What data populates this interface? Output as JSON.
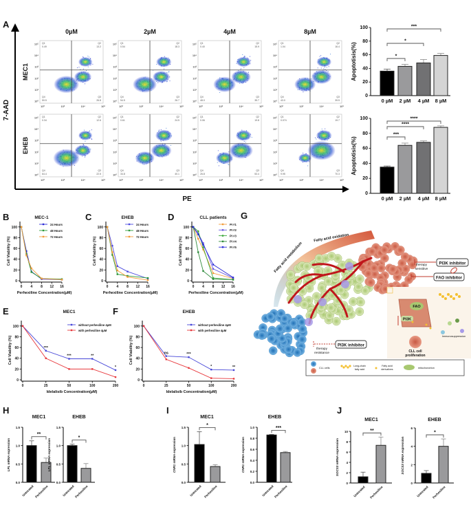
{
  "panel_letters": {
    "A": "A",
    "B": "B",
    "C": "C",
    "D": "D",
    "E": "E",
    "F": "F",
    "G": "G",
    "H": "H",
    "I": "I",
    "J": "J"
  },
  "flow": {
    "y_axis_label": "7-AAD",
    "x_axis_label": "PE",
    "columns": [
      "0µM",
      "2µM",
      "4µM",
      "8µM"
    ],
    "rows": [
      "MEC1",
      "EHEB"
    ],
    "x_ticks": [
      "10⁰",
      "10²",
      "10⁴",
      "10⁶"
    ],
    "y_ticks": [
      "10⁰",
      "10¹",
      "10²",
      "10³",
      "10⁴",
      "10⁵"
    ],
    "quadrant_names": [
      "Q1",
      "Q2",
      "Q3",
      "Q4"
    ],
    "quadrants": [
      [
        {
          "Q1": "0.49",
          "Q2": "13.2",
          "Q3": "26.8",
          "Q4": "59.5"
        },
        {
          "Q1": "0.54",
          "Q2": "18.3",
          "Q3": "26.7",
          "Q4": "54.5"
        },
        {
          "Q1": "0.40",
          "Q2": "15.9",
          "Q3": "35.7",
          "Q4": "48.0"
        },
        {
          "Q1": "1.04",
          "Q2": "16.4",
          "Q3": "39.5",
          "Q4": "43.0"
        }
      ],
      [
        {
          "Q1": "0.34",
          "Q2": "12.6",
          "Q3": "22.5",
          "Q4": "64.4"
        },
        {
          "Q1": "0.61",
          "Q2": "24.5",
          "Q3": "40.1",
          "Q4": "34.8"
        },
        {
          "Q1": "0.06",
          "Q2": "19.8",
          "Q3": "53.4",
          "Q4": "26.8"
        },
        {
          "Q1": "0.074",
          "Q2": "19.7",
          "Q3": "70.3",
          "Q4": "9.95"
        }
      ]
    ]
  },
  "chart_data": [
    {
      "id": "A-MEC1",
      "type": "bar",
      "ylabel": "Apoptotisis(%)",
      "categories": [
        "0 µM",
        "2 µM",
        "4 µM",
        "8 µM"
      ],
      "values": [
        36,
        43,
        48,
        59
      ],
      "errors": [
        3,
        3,
        5,
        3
      ],
      "ylim": [
        0,
        100
      ],
      "yticks": [
        "0",
        "20",
        "40",
        "60",
        "80",
        "100"
      ],
      "colors": [
        "#000000",
        "#9a9a9c",
        "#717173",
        "#d4d4d4"
      ],
      "comparisons": [
        {
          "from": 0,
          "to": 1,
          "label": "*"
        },
        {
          "from": 0,
          "to": 2,
          "label": "*"
        },
        {
          "from": 0,
          "to": 3,
          "label": "***"
        }
      ]
    },
    {
      "id": "A-EHEB",
      "type": "bar",
      "ylabel": "Apoptotisis(%)",
      "categories": [
        "0 µM",
        "2 µM",
        "4 µM",
        "8 µM"
      ],
      "values": [
        35,
        64,
        68,
        88
      ],
      "errors": [
        1.5,
        3,
        2,
        2
      ],
      "ylim": [
        0,
        100
      ],
      "yticks": [
        "0",
        "20",
        "40",
        "60",
        "80",
        "100"
      ],
      "colors": [
        "#000000",
        "#9a9a9c",
        "#717173",
        "#d4d4d4"
      ],
      "comparisons": [
        {
          "from": 0,
          "to": 1,
          "label": "***"
        },
        {
          "from": 0,
          "to": 2,
          "label": "****"
        },
        {
          "from": 0,
          "to": 3,
          "label": "****"
        }
      ]
    },
    {
      "id": "B",
      "type": "line",
      "title": "MEC-1",
      "xlabel": "Perhexiline Concentration(µM)",
      "ylabel": "Cell Viability (%)",
      "x": [
        0,
        2,
        4,
        8,
        16
      ],
      "xticks": [
        "0",
        "4",
        "8",
        "12",
        "16"
      ],
      "xtick_values": [
        0,
        4,
        8,
        12,
        16
      ],
      "ylim": [
        0,
        110
      ],
      "yticks": [
        "0",
        "20",
        "40",
        "60",
        "80",
        "100"
      ],
      "legend": "top-right",
      "series": [
        {
          "name": "24 Hours",
          "color": "#2b2bd6",
          "values": [
            100,
            55,
            17,
            3,
            2
          ]
        },
        {
          "name": "48 Hours",
          "color": "#2e9a3a",
          "values": [
            100,
            50,
            16,
            4,
            3
          ]
        },
        {
          "name": "72 Hours",
          "color": "#f29b38",
          "values": [
            100,
            47,
            23,
            4,
            2
          ]
        }
      ]
    },
    {
      "id": "C",
      "type": "line",
      "title": "EHEB",
      "xlabel": "Perhexiline Concentration(µM)",
      "ylabel": "Cell Viability (%)",
      "x": [
        0,
        2,
        4,
        8,
        16
      ],
      "xticks": [
        "0",
        "4",
        "8",
        "12",
        "16"
      ],
      "xtick_values": [
        0,
        4,
        8,
        12,
        16
      ],
      "ylim": [
        0,
        110
      ],
      "yticks": [
        "0",
        "20",
        "40",
        "60",
        "80",
        "100"
      ],
      "legend": "top-right",
      "series": [
        {
          "name": "24 Hours",
          "color": "#4a4ae0",
          "values": [
            100,
            65,
            27,
            17,
            4
          ]
        },
        {
          "name": "48 Hours",
          "color": "#2e9a3a",
          "values": [
            100,
            48,
            12,
            9,
            5
          ]
        },
        {
          "name": "72 Hours",
          "color": "#f29b38",
          "values": [
            100,
            53,
            19,
            7,
            1
          ]
        }
      ]
    },
    {
      "id": "D",
      "type": "line",
      "title": "CLL patients",
      "xlabel": "Perhexiline Concentration(µM)",
      "ylabel": "Cell Viability (%)",
      "x": [
        0,
        2,
        4,
        8,
        16
      ],
      "xticks": [
        "0",
        "4",
        "8",
        "12",
        "16"
      ],
      "xtick_values": [
        0,
        4,
        8,
        12,
        16
      ],
      "ylim": [
        0,
        110
      ],
      "yticks": [
        "0",
        "20",
        "40",
        "60",
        "80",
        "100"
      ],
      "legend": "top-right",
      "series": [
        {
          "name": "PI #1",
          "color": "#f29b38",
          "values": [
            100,
            78,
            58,
            14,
            4
          ]
        },
        {
          "name": "PI #2",
          "color": "#6a5ae0",
          "values": [
            100,
            88,
            70,
            22,
            5
          ]
        },
        {
          "name": "PI #3",
          "color": "#3aa83a",
          "values": [
            100,
            92,
            62,
            5,
            2
          ]
        },
        {
          "name": "PI #4",
          "color": "#2e8a3a",
          "values": [
            100,
            53,
            18,
            3,
            2
          ]
        },
        {
          "name": "PI #5",
          "color": "#2b2bd6",
          "values": [
            100,
            86,
            67,
            30,
            6
          ]
        }
      ]
    },
    {
      "id": "E",
      "type": "line",
      "title": "MEC1",
      "xlabel": "Idelalisib Concentration(µM)",
      "ylabel": "Cell Viability (%)",
      "x": [
        0,
        25,
        50,
        100,
        200
      ],
      "xticks": [
        "0",
        "25",
        "50",
        "100",
        "200"
      ],
      "ylim": [
        0,
        110
      ],
      "yticks": [
        "0",
        "20",
        "40",
        "60",
        "80",
        "100"
      ],
      "legend": "top-right",
      "significance": [
        "",
        "***",
        "***",
        "**",
        "*"
      ],
      "series": [
        {
          "name": "without perhexiline 4μM",
          "color": "#4646d8",
          "values": [
            100,
            54,
            39,
            39,
            18
          ]
        },
        {
          "name": "with perhexiline 4μM",
          "color": "#e8383c",
          "values": [
            100,
            40,
            20,
            20,
            5
          ]
        }
      ]
    },
    {
      "id": "F",
      "type": "line",
      "title": "EHEB",
      "xlabel": "Idelalisib Concentration(µM)",
      "ylabel": "Cell Viability (%)",
      "x": [
        0,
        25,
        50,
        100,
        200
      ],
      "xticks": [
        "0",
        "25",
        "50",
        "100",
        "200"
      ],
      "ylim": [
        0,
        110
      ],
      "yticks": [
        "0",
        "20",
        "40",
        "60",
        "80",
        "100"
      ],
      "legend": "top-right",
      "significance": [
        "",
        "ns",
        "***",
        "*",
        "**"
      ],
      "series": [
        {
          "name": "without perhexiline 4μM",
          "color": "#4646d8",
          "values": [
            100,
            44,
            42,
            19,
            18
          ]
        },
        {
          "name": "with perhexiline 4μM",
          "color": "#e8383c",
          "values": [
            100,
            38,
            22,
            3,
            2
          ]
        }
      ]
    },
    {
      "id": "H-MEC1",
      "type": "bar",
      "title": "MEC1",
      "gene": "LPL",
      "ylabel_suffix": " mRNA expression",
      "categories": [
        "Untreated",
        "Perhexiline"
      ],
      "values": [
        1.0,
        0.54
      ],
      "errors": [
        0.13,
        0.12
      ],
      "ylim": [
        0,
        1.5
      ],
      "yticks": [
        "0.0",
        "0.5",
        "1.0",
        "1.5"
      ],
      "colors": [
        "#000000",
        "#9a9a9c"
      ],
      "comparisons": [
        {
          "from": 0,
          "to": 1,
          "label": "**"
        }
      ]
    },
    {
      "id": "H-EHEB",
      "type": "bar",
      "title": "EHEB",
      "gene": "LPL",
      "ylabel_suffix": " mRNA expression",
      "categories": [
        "Untreated",
        "Perhexiline"
      ],
      "values": [
        1.0,
        0.38
      ],
      "errors": [
        0.04,
        0.13
      ],
      "ylim": [
        0,
        1.5
      ],
      "yticks": [
        "0.0",
        "0.5",
        "1.0",
        "1.5"
      ],
      "colors": [
        "#000000",
        "#9a9a9c"
      ],
      "comparisons": [
        {
          "from": 0,
          "to": 1,
          "label": "*"
        }
      ]
    },
    {
      "id": "I-MEC1",
      "type": "bar",
      "title": "MEC1",
      "gene": "CNR1",
      "ylabel_suffix": " mRNA expression",
      "categories": [
        "Untreated",
        "Perhexiline"
      ],
      "values": [
        1.03,
        0.43
      ],
      "errors": [
        0.35,
        0.05
      ],
      "ylim": [
        0,
        1.5
      ],
      "yticks": [
        "0.0",
        "0.5",
        "1.0",
        "1.5"
      ],
      "colors": [
        "#000000",
        "#9a9a9c"
      ],
      "comparisons": [
        {
          "from": 0,
          "to": 1,
          "label": "*"
        }
      ]
    },
    {
      "id": "I-EHEB",
      "type": "bar",
      "title": "EHEB",
      "gene": "CNR1",
      "ylabel_suffix": " mRNA expression",
      "categories": [
        "Untreated",
        "Perhexiline"
      ],
      "values": [
        0.86,
        0.54
      ],
      "errors": [
        0.01,
        0.02
      ],
      "ylim": [
        0,
        1.0
      ],
      "yticks": [
        "0.0",
        "0.2",
        "0.4",
        "0.6",
        "0.8",
        "1.0"
      ],
      "colors": [
        "#000000",
        "#9a9a9c"
      ],
      "comparisons": [
        {
          "from": 0,
          "to": 1,
          "label": "***"
        }
      ]
    },
    {
      "id": "J-MEC1",
      "type": "bar",
      "title": "MEC1",
      "gene": "SOCS3",
      "ylabel_suffix": " mRNA expression",
      "categories": [
        "Untreated",
        "Perhexiline"
      ],
      "values": [
        1.2,
        7.3
      ],
      "errors": [
        0.9,
        1.6
      ],
      "ylim": [
        0,
        10
      ],
      "yticks": [
        "0",
        "2",
        "4",
        "6",
        "8",
        "10"
      ],
      "colors": [
        "#000000",
        "#9a9a9c"
      ],
      "comparisons": [
        {
          "from": 0,
          "to": 1,
          "label": "**"
        }
      ]
    },
    {
      "id": "J-EHEB",
      "type": "bar",
      "title": "EHEB",
      "gene": "SOCS3",
      "ylabel_suffix": " mRNA expression",
      "categories": [
        "Untreated",
        "Perhexiline"
      ],
      "values": [
        1.05,
        4.0
      ],
      "errors": [
        0.3,
        0.8
      ],
      "ylim": [
        0,
        6
      ],
      "yticks": [
        "0",
        "2",
        "4",
        "6"
      ],
      "colors": [
        "#000000",
        "#9a9a9c"
      ],
      "comparisons": [
        {
          "from": 0,
          "to": 1,
          "label": "*"
        }
      ]
    }
  ],
  "diagram": {
    "arc_left": "Fatty acid metabolism",
    "arc_right": "Fatty acid oxidation",
    "pi3k_inhibitor": "PI3K inhibitor",
    "therapy_sensitive_1": "therapy",
    "therapy_sensitive_2": "sensitive",
    "fao_inhibitor": "FAO inhibitor",
    "therapy_resistance_1": "therapy",
    "therapy_resistance_2": "resistance",
    "inset": {
      "fao": "FAO",
      "pi3k": "PI3K",
      "immuno": "Immunosuppression",
      "prolif_1": "CLL cell",
      "prolif_2": "proliferation"
    },
    "legend": {
      "cll": "CLL cells",
      "lcfa_1": "Long-chain",
      "lcfa_2": "fatty acid",
      "fad_1": "Fatty acid",
      "fad_2": "derivatives",
      "mito": "mitochondrion"
    },
    "colors": {
      "green_cells": "#c9dea0",
      "red_cells": "#d9705a",
      "blue_cells": "#3d8fcf",
      "vessels": "#c0161b",
      "arc_start": "#7fb0c8",
      "arc_end": "#d96a4a"
    }
  }
}
